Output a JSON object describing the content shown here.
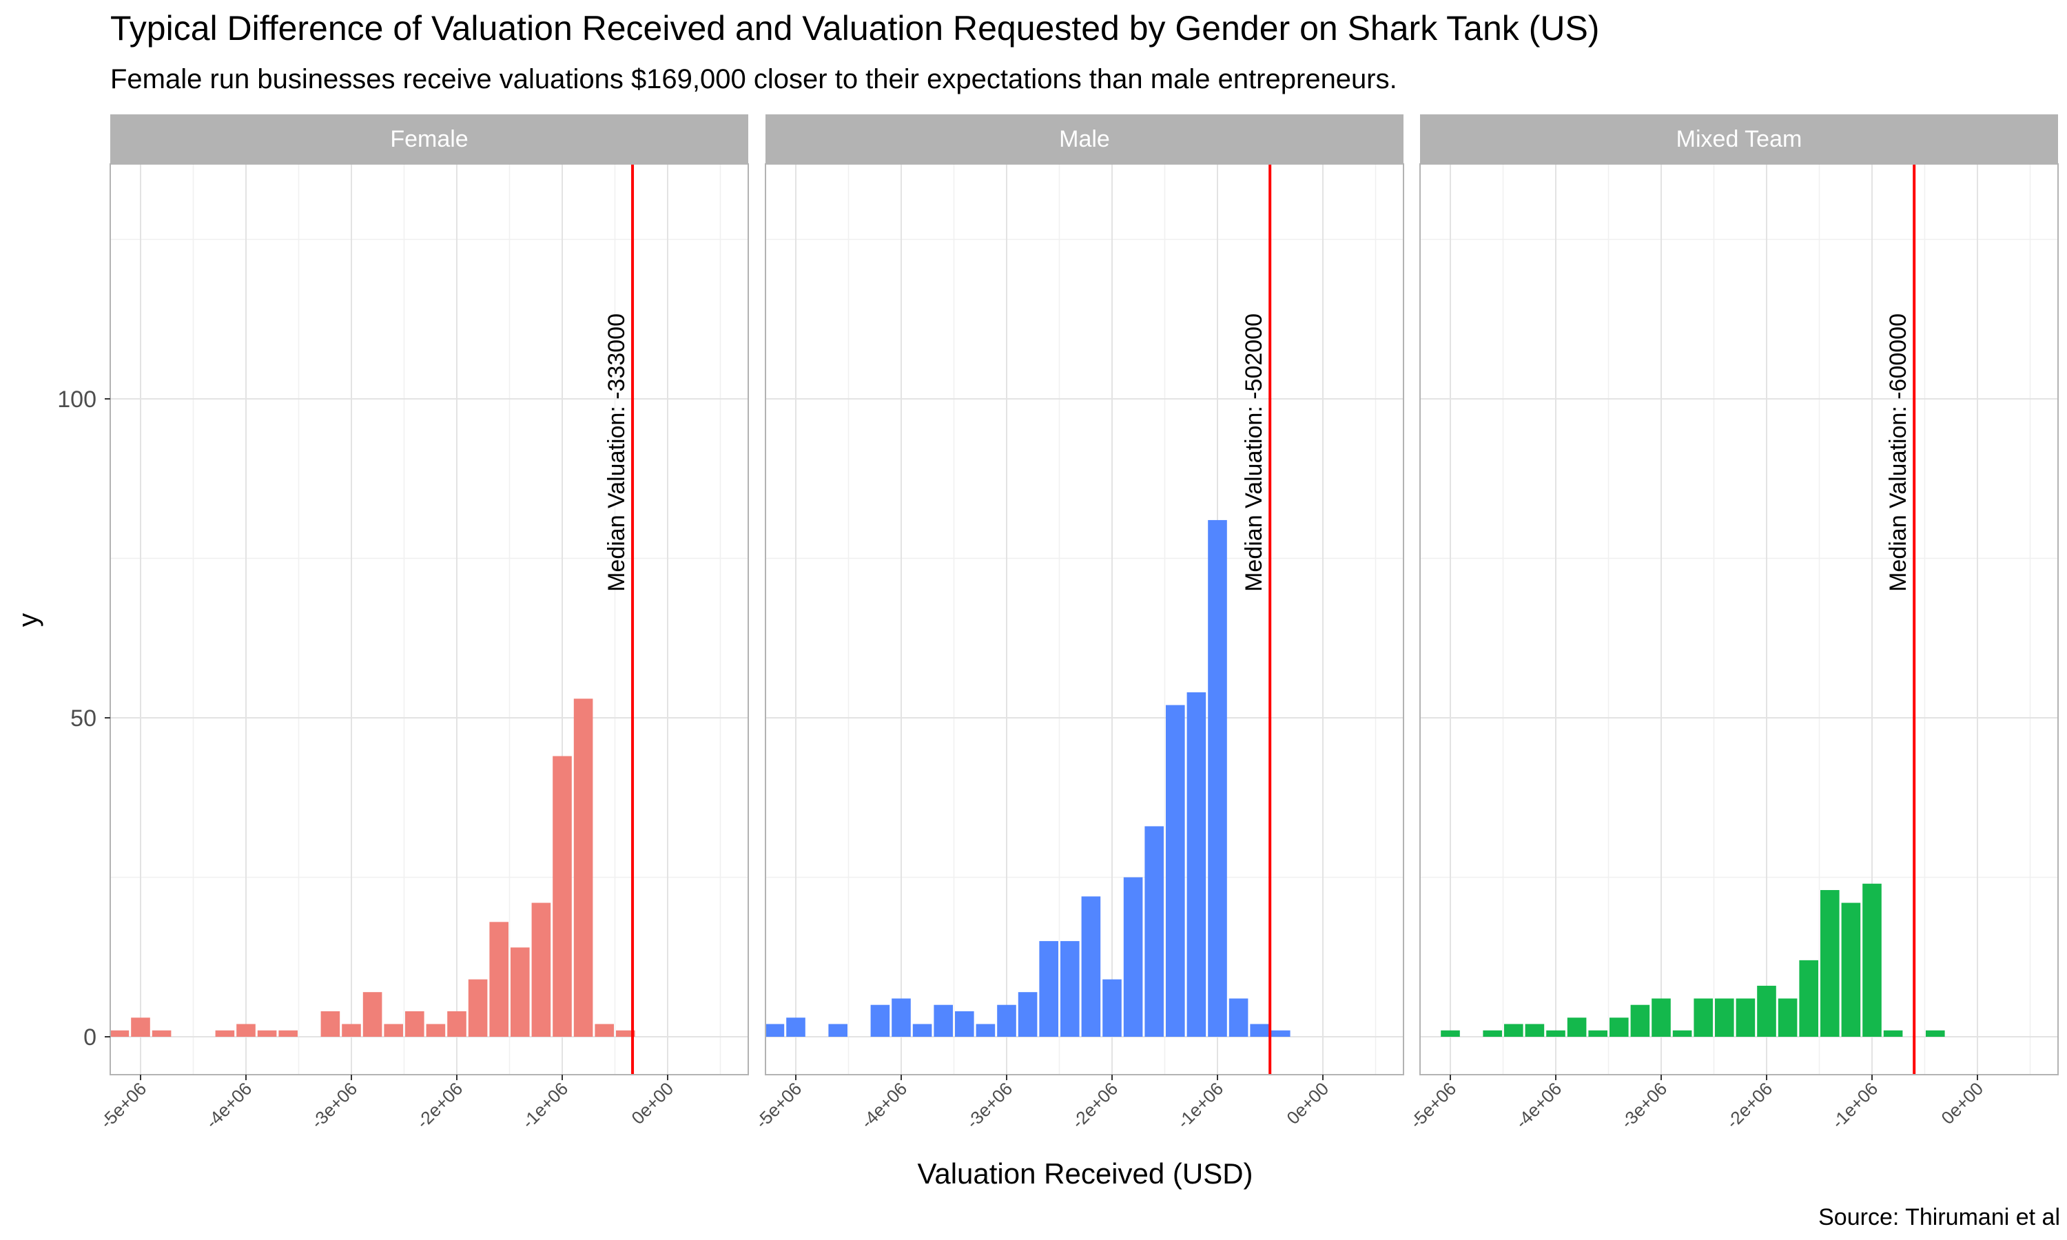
{
  "chart_data": {
    "type": "bar",
    "title": "Typical Difference of Valuation Received and Valuation Requested by Gender on Shark Tank (US)",
    "subtitle": "Female run businesses receive valuations $169,000 closer to their expectations than male entrepreneurs.",
    "xlabel": "Valuation Received (USD)",
    "ylabel": "y",
    "caption": "Source: Thirumani et al",
    "xlim": [
      -5250000,
      500000
    ],
    "ylim": [
      -6.5,
      136
    ],
    "bin_width": 200000,
    "x_ticks": [
      -5000000,
      -4000000,
      -3000000,
      -2000000,
      -1000000,
      0
    ],
    "x_tick_labels": [
      "-5e+06",
      "-4e+06",
      "-3e+06",
      "-2e+06",
      "-1e+06",
      "0e+00"
    ],
    "y_ticks": [
      0,
      50,
      100
    ],
    "y_tick_labels": [
      "0",
      "50",
      "100"
    ],
    "grid": true,
    "median_line_color": "#ff0000",
    "bin_centers": [
      -5200000,
      -5000000,
      -4800000,
      -4600000,
      -4400000,
      -4200000,
      -4000000,
      -3800000,
      -3600000,
      -3400000,
      -3200000,
      -3000000,
      -2800000,
      -2600000,
      -2400000,
      -2200000,
      -2000000,
      -1800000,
      -1600000,
      -1400000,
      -1200000,
      -1000000,
      -800000,
      -600000,
      -400000,
      -200000,
      0,
      200000,
      400000
    ],
    "panels": [
      {
        "name": "Female",
        "color": "#f08078",
        "values": [
          1,
          3,
          1,
          0,
          0,
          1,
          2,
          1,
          1,
          0,
          4,
          2,
          7,
          2,
          4,
          2,
          4,
          9,
          18,
          14,
          21,
          44,
          53,
          2,
          1,
          0,
          0,
          0,
          0
        ],
        "median": -333000,
        "median_label": "Median Valuation: -333000"
      },
      {
        "name": "Male",
        "color": "#5286ff",
        "values": [
          2,
          3,
          0,
          2,
          0,
          5,
          6,
          2,
          5,
          4,
          2,
          5,
          7,
          15,
          15,
          22,
          9,
          25,
          33,
          52,
          54,
          81,
          6,
          2,
          1,
          0,
          0,
          0,
          0
        ],
        "median": -502000,
        "median_label": "Median Valuation: -502000"
      },
      {
        "name": "Mixed Team",
        "color": "#14b84c",
        "values": [
          0,
          1,
          0,
          1,
          2,
          2,
          1,
          3,
          1,
          3,
          5,
          6,
          1,
          6,
          6,
          6,
          8,
          6,
          12,
          23,
          21,
          24,
          1,
          0,
          1,
          0,
          0,
          0,
          0
        ],
        "median": -600000,
        "median_label": "Median Valuation: -600000"
      }
    ]
  }
}
